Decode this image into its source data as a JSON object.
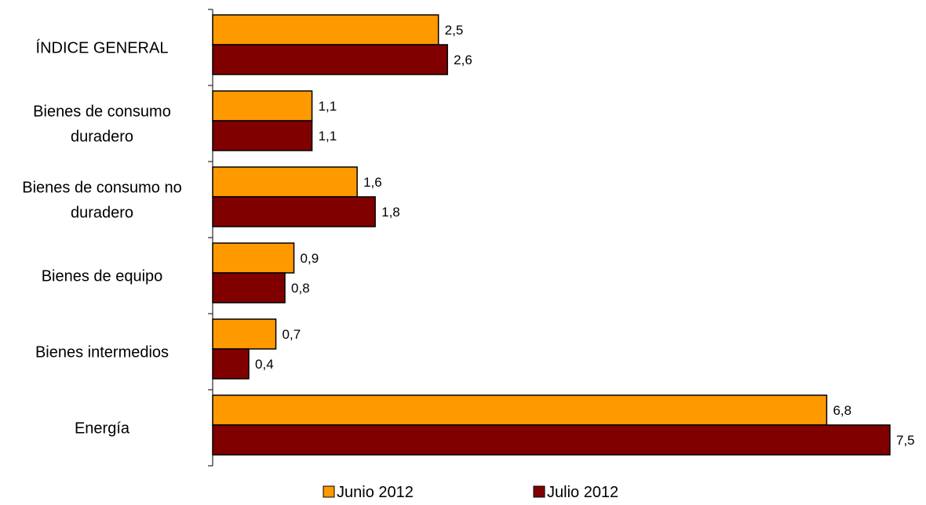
{
  "chart_data": {
    "type": "bar",
    "orientation": "horizontal",
    "title": "",
    "xlabel": "",
    "ylabel": "",
    "categories": [
      "ÍNDICE GENERAL",
      "Bienes de consumo duradero",
      "Bienes de consumo no duradero",
      "Bienes de equipo",
      "Bienes intermedios",
      "Energía"
    ],
    "category_lines": [
      [
        "ÍNDICE GENERAL"
      ],
      [
        "Bienes de consumo",
        "duradero"
      ],
      [
        "Bienes de consumo no",
        "duradero"
      ],
      [
        "Bienes de equipo"
      ],
      [
        "Bienes intermedios"
      ],
      [
        "Energía"
      ]
    ],
    "series": [
      {
        "name": "Junio 2012",
        "color": "#FF9900",
        "values": [
          2.5,
          1.1,
          1.6,
          0.9,
          0.7,
          6.8
        ],
        "labels": [
          "2,5",
          "1,1",
          "1,6",
          "0,9",
          "0,7",
          "6,8"
        ]
      },
      {
        "name": "Julio 2012",
        "color": "#800000",
        "values": [
          2.6,
          1.1,
          1.8,
          0.8,
          0.4,
          7.5
        ],
        "labels": [
          "2,6",
          "1,1",
          "1,8",
          "0,8",
          "0,4",
          "7,5"
        ]
      }
    ],
    "xlim": [
      0,
      7.5
    ],
    "grid": false,
    "legend_position": "bottom"
  }
}
